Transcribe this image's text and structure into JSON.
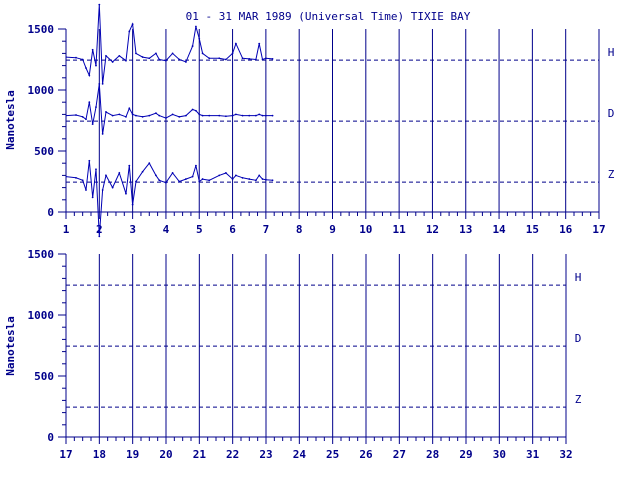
{
  "title": "01 - 31 MAR 1989 (Universal Time) TIXIE BAY",
  "colors": {
    "ink": "#00008b",
    "trace": "#0000b4",
    "background": "#ffffff"
  },
  "chart_data": [
    {
      "type": "line",
      "panel": "top",
      "ylabel": "Nanotesla",
      "xlim": [
        1,
        17
      ],
      "ylim": [
        0,
        1500
      ],
      "x_ticks": [
        "1",
        "2",
        "3",
        "4",
        "5",
        "6",
        "7",
        "8",
        "9",
        "10",
        "11",
        "12",
        "13",
        "14",
        "15",
        "16",
        "17"
      ],
      "y_ticks": [
        "0",
        "500",
        "1000",
        "1500"
      ],
      "grid": "vertical lines at each day",
      "legend": "channel labels at right",
      "baselines": [
        {
          "name": "H",
          "value": 1245
        },
        {
          "name": "D",
          "value": 745
        },
        {
          "name": "Z",
          "value": 245
        }
      ],
      "series": [
        {
          "name": "H",
          "x": [
            1.0,
            1.3,
            1.5,
            1.6,
            1.7,
            1.8,
            1.9,
            2.0,
            2.1,
            2.2,
            2.4,
            2.6,
            2.8,
            2.9,
            3.0,
            3.1,
            3.3,
            3.5,
            3.7,
            3.8,
            4.0,
            4.2,
            4.4,
            4.6,
            4.8,
            4.9,
            5.0,
            5.1,
            5.3,
            5.6,
            5.8,
            6.0,
            6.1,
            6.3,
            6.5,
            6.7,
            6.8,
            6.9,
            7.0,
            7.2
          ],
          "y": [
            1270,
            1265,
            1250,
            1180,
            1120,
            1330,
            1200,
            1700,
            1050,
            1280,
            1230,
            1280,
            1240,
            1480,
            1540,
            1300,
            1270,
            1260,
            1300,
            1250,
            1240,
            1300,
            1250,
            1230,
            1360,
            1520,
            1420,
            1300,
            1260,
            1260,
            1250,
            1300,
            1380,
            1260,
            1255,
            1250,
            1380,
            1250,
            1260,
            1255
          ]
        },
        {
          "name": "D",
          "x": [
            1.0,
            1.3,
            1.5,
            1.6,
            1.7,
            1.8,
            1.9,
            2.0,
            2.1,
            2.2,
            2.4,
            2.6,
            2.8,
            2.9,
            3.0,
            3.1,
            3.3,
            3.5,
            3.7,
            3.8,
            4.0,
            4.2,
            4.4,
            4.6,
            4.8,
            4.9,
            5.0,
            5.1,
            5.3,
            5.6,
            5.8,
            6.0,
            6.1,
            6.3,
            6.5,
            6.7,
            6.8,
            6.9,
            7.0,
            7.2
          ],
          "y": [
            790,
            795,
            780,
            760,
            900,
            720,
            860,
            1050,
            640,
            820,
            790,
            800,
            780,
            850,
            800,
            790,
            780,
            790,
            810,
            790,
            770,
            800,
            780,
            790,
            840,
            830,
            800,
            790,
            790,
            790,
            785,
            790,
            800,
            790,
            790,
            790,
            800,
            790,
            790,
            790
          ]
        },
        {
          "name": "Z",
          "x": [
            1.0,
            1.3,
            1.5,
            1.6,
            1.7,
            1.8,
            1.9,
            2.0,
            2.1,
            2.2,
            2.4,
            2.6,
            2.8,
            2.9,
            3.0,
            3.1,
            3.3,
            3.5,
            3.7,
            3.8,
            4.0,
            4.2,
            4.4,
            4.6,
            4.8,
            4.9,
            5.0,
            5.1,
            5.3,
            5.6,
            5.8,
            6.0,
            6.1,
            6.3,
            6.5,
            6.7,
            6.8,
            6.9,
            7.0,
            7.2
          ],
          "y": [
            290,
            280,
            260,
            180,
            420,
            120,
            350,
            -200,
            180,
            300,
            200,
            320,
            150,
            380,
            60,
            250,
            330,
            400,
            300,
            260,
            240,
            320,
            250,
            270,
            290,
            380,
            250,
            270,
            260,
            300,
            320,
            270,
            300,
            280,
            270,
            260,
            300,
            270,
            265,
            260
          ]
        }
      ]
    },
    {
      "type": "line",
      "panel": "bottom",
      "ylabel": "Nanotesla",
      "xlim": [
        17,
        32
      ],
      "ylim": [
        0,
        1500
      ],
      "x_ticks": [
        "17",
        "18",
        "19",
        "20",
        "21",
        "22",
        "23",
        "24",
        "25",
        "26",
        "27",
        "28",
        "29",
        "30",
        "31",
        "32"
      ],
      "y_ticks": [
        "0",
        "500",
        "1000",
        "1500"
      ],
      "grid": "vertical lines at each day",
      "legend": "channel labels at right",
      "baselines": [
        {
          "name": "H",
          "value": 1245
        },
        {
          "name": "D",
          "value": 745
        },
        {
          "name": "Z",
          "value": 245
        }
      ],
      "series": []
    }
  ]
}
